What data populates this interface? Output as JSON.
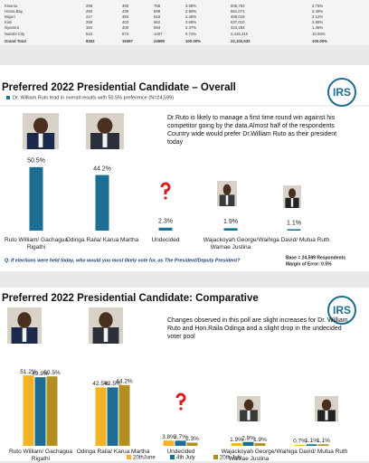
{
  "table": {
    "rows": [
      [
        "Kisumu",
        "298",
        "460",
        "758",
        "3.08%",
        "606,754",
        "2.75%"
      ],
      [
        "Homa Bay",
        "250",
        "439",
        "689",
        "2.80%",
        "551,071",
        "2.49%"
      ],
      [
        "Migori",
        "217",
        "393",
        "610",
        "2.48%",
        "469,019",
        "2.12%"
      ],
      [
        "Kisii",
        "259",
        "403",
        "662",
        "2.69%",
        "637,010",
        "2.88%"
      ],
      [
        "Nyamira",
        "184",
        "400",
        "584",
        "2.37%",
        "323,283",
        "1.46%"
      ],
      [
        "Nairobi City",
        "534",
        "873",
        "1407",
        "5.72%",
        "2,415,310",
        "10.93%"
      ],
      [
        "Grand Total",
        "9202",
        "15397",
        "24599",
        "100.00%",
        "22,102,532",
        "100.00%"
      ]
    ]
  },
  "chart_data": [
    {
      "type": "bar",
      "title": "Preferred 2022 Presidential Candidate – Overall",
      "subtitle": "Dr. William Ruto lead in overall results with 50.5% preference (N=24,599)",
      "note": "Dr.Ruto is likely to manage a first time round  win against his competitor going by the data.Almost half of the respondents Country wide would prefer Dr.William Ruto as their president today",
      "logo": "IRS",
      "categories": [
        "Ruto William/ Gachagua Rigathi",
        "Odinga Raila/ Karua Martha",
        "Undecided",
        "Wajackoyah George/ Wamae Justina",
        "Waihiga David/ Mutua Ruth"
      ],
      "values": [
        50.5,
        44.2,
        2.3,
        1.9,
        1.1
      ],
      "value_labels": [
        "50.5%",
        "44.2%",
        "2.3%",
        "1.9%",
        "1.1%"
      ],
      "color": "#1d6e93",
      "question": "Q. If elections were held today, who would you most likely vote for, as The President/Deputy President?",
      "base": "Base = 24,599 Respondents",
      "margin": "Margin of Error: 0.5%"
    },
    {
      "type": "grouped_bar",
      "title": "Preferred 2022 Presidential Candidate: Comparative",
      "note": "Changes observed in this poll are slight increases for Dr. William Ruto and Hon.Raila Odinga and a slight drop in the undecided voter pool",
      "logo": "IRS",
      "categories": [
        "Ruto William/ Gachagua Rigathi",
        "Odinga Raila/ Karua Martha",
        "Undecided",
        "Wajackoyah George/ Wamae Justina",
        "Waihiga David/ Mutua Ruth"
      ],
      "series": [
        {
          "name": "20thJune",
          "color": "#f2b327",
          "values": [
            51.2,
            42.5,
            3.8,
            1.9,
            0.7
          ],
          "value_labels": [
            "51.2%",
            "42.5%",
            "3.8%",
            "1.9%",
            "0.7%"
          ]
        },
        {
          "name": "4th July",
          "color": "#1d6e93",
          "values": [
            49.9,
            42.5,
            3.7,
            2.8,
            1.1
          ],
          "value_labels": [
            "49.9%",
            "42.5%",
            "3.7%",
            "2.8%",
            "1.1%"
          ]
        },
        {
          "name": "20th July",
          "color": "#b38f1f",
          "values": [
            50.5,
            44.2,
            2.3,
            1.9,
            1.1
          ],
          "value_labels": [
            "50.5%",
            "44.2%",
            "2.3%",
            "1.9%",
            "1.1%"
          ]
        }
      ],
      "legend": "bottom"
    }
  ]
}
